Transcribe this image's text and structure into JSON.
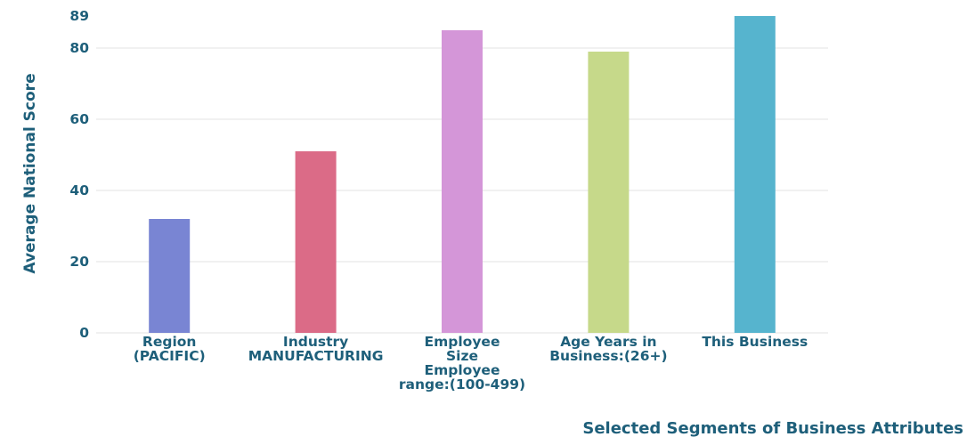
{
  "chart_data": {
    "type": "bar",
    "categories": [
      [
        "Region",
        "(PACIFIC)"
      ],
      [
        "Industry",
        "MANUFACTURING"
      ],
      [
        "Employee",
        "Size",
        "Employee",
        "range:(100-499)"
      ],
      [
        "Age Years in",
        "Business:(26+)"
      ],
      [
        "This Business"
      ]
    ],
    "values": [
      32,
      51,
      85,
      79,
      89
    ],
    "colors": [
      "#7985d3",
      "#db6b87",
      "#d496d8",
      "#c6d98a",
      "#56b4ce"
    ],
    "xlabel": "Selected Segments of Business Attributes",
    "ylabel": "Average National Score",
    "yticks": [
      0,
      20,
      40,
      60,
      80,
      89
    ],
    "ylim": [
      0,
      89
    ],
    "grid": true
  }
}
